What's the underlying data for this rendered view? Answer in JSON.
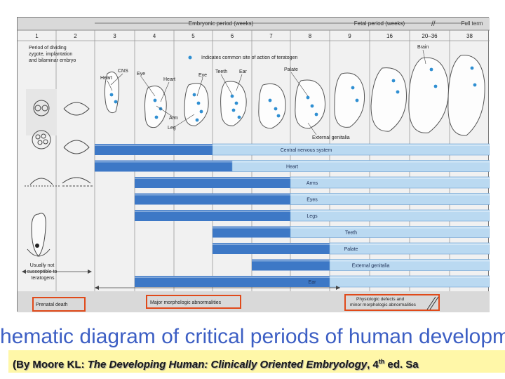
{
  "header": {
    "embryonic_period": "Embryonic period (weeks)",
    "fetal_period": "Fetal period (weeks)",
    "full_term": "Full term",
    "weeks": [
      "1",
      "2",
      "3",
      "4",
      "5",
      "6",
      "7",
      "8",
      "9",
      "16",
      "20–36",
      "38"
    ]
  },
  "labels": {
    "early_period": "Period of dividing zygote, implantation and bilaminar embryo",
    "teratogen_legend": "Indicates common site of action of teratogen",
    "not_susceptible": "Usually not susceptible to teratogens",
    "cns": "CNS",
    "heart_1": "Heart",
    "eye_1": "Eye",
    "heart_2": "Heart",
    "eye_2": "Eye",
    "teeth": "Teeth",
    "ear": "Ear",
    "palate": "Palate",
    "brain": "Brain",
    "arm": "Arm",
    "leg": "Leg",
    "external_genitalia": "External genitalia"
  },
  "bars": [
    {
      "label": "Central nervous system",
      "dark_from_week": 3,
      "light_from_week": 6
    },
    {
      "label": "Heart",
      "dark_from_week": 3,
      "light_from_week": 6.5
    },
    {
      "label": "Arms",
      "dark_from_week": 4,
      "light_from_week": 8
    },
    {
      "label": "Eyes",
      "dark_from_week": 4,
      "light_from_week": 8
    },
    {
      "label": "Legs",
      "dark_from_week": 4,
      "light_from_week": 8
    },
    {
      "label": "Teeth",
      "dark_from_week": 6,
      "light_from_week": 8
    },
    {
      "label": "Palate",
      "dark_from_week": 6,
      "light_from_week": 9
    },
    {
      "label": "External genitalia",
      "dark_from_week": 7,
      "light_from_week": 9
    },
    {
      "label": "Ear",
      "dark_from_week": 4,
      "light_from_week": 9
    }
  ],
  "outcomes": {
    "prenatal_death": "Prenatal death",
    "major_abnormalities": "Major morphologic abnormalities",
    "physiologic_defects": "Physiologic defects and minor morphologic abnormalities"
  },
  "caption": {
    "title": "hematic diagram of critical periods of human developm",
    "citation_prefix": "(By Moore KL: ",
    "citation_book": "The Developing Human: Clinically Oriented Embryology",
    "citation_edition_num": ", 4",
    "citation_edition_sup": "th",
    "citation_suffix": " ed. Sa"
  },
  "colors": {
    "bar_dark": "#3d78c6",
    "bar_light": "#bad9f1",
    "teratogen_dot": "#2f8fd2",
    "highlight_box": "#e04a1a",
    "title_text": "#3d5fc4",
    "citation_bg": "#fff7a8"
  }
}
